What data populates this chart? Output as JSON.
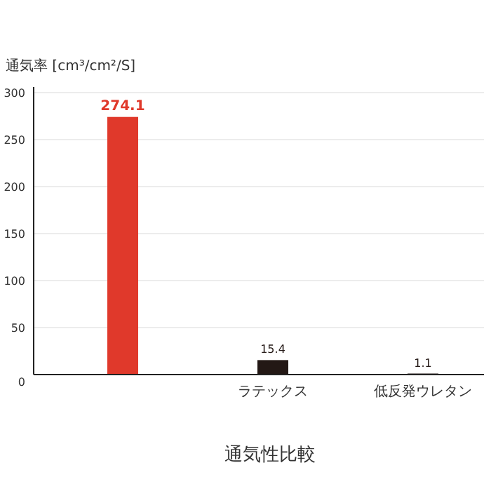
{
  "chart_data": {
    "type": "bar",
    "ylabel": "通気率 [cm³/cm²/S]",
    "xlabel": "通気性比較",
    "categories": [
      null,
      "ラテックス",
      "低反発ウレタン"
    ],
    "values": [
      274.1,
      15.4,
      1.1
    ],
    "colors": [
      "#e0392b",
      "#231815",
      "#231815"
    ],
    "ylim": [
      0,
      300
    ],
    "yticks": [
      0,
      50,
      100,
      150,
      200,
      250,
      300
    ],
    "grid": "y",
    "data_labels": true
  }
}
